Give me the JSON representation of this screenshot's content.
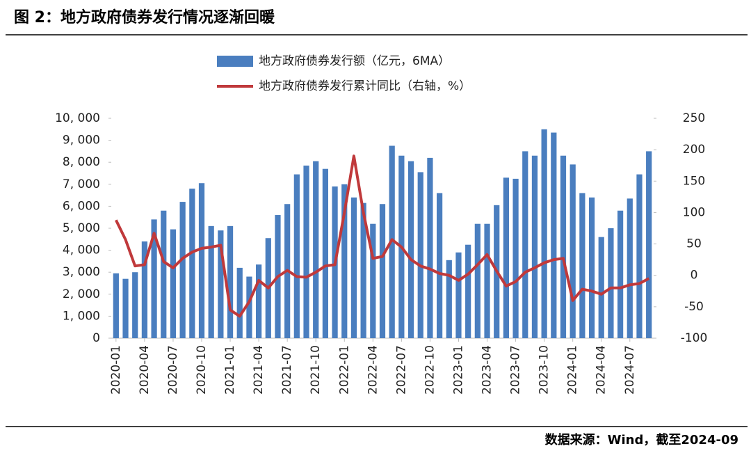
{
  "title": "图 2：地方政府债券发行情况逐渐回暖",
  "source": "数据来源：Wind，截至2024-09",
  "chart_data": {
    "type": "bar_line",
    "categories": [
      "2020-01",
      null,
      null,
      "2020-04",
      null,
      null,
      "2020-07",
      null,
      null,
      "2020-10",
      null,
      null,
      "2021-01",
      null,
      null,
      "2021-04",
      null,
      null,
      "2021-07",
      null,
      null,
      "2021-10",
      null,
      null,
      "2022-01",
      null,
      null,
      "2022-04",
      null,
      null,
      "2022-07",
      null,
      null,
      "2022-10",
      null,
      null,
      "2023-01",
      null,
      null,
      "2023-04",
      null,
      null,
      "2023-07",
      null,
      null,
      "2023-10",
      null,
      null,
      "2024-01",
      null,
      null,
      "2024-04",
      null,
      null,
      "2024-07",
      null,
      null
    ],
    "series": [
      {
        "name": "地方政府债券发行额（亿元，6MA）",
        "color": "#4a7ebf",
        "type": "bar",
        "values": [
          2950,
          2700,
          3000,
          4400,
          5400,
          5800,
          4950,
          6200,
          6800,
          7050,
          5100,
          4900,
          5100,
          3200,
          2800,
          3350,
          4550,
          5600,
          6100,
          7450,
          7850,
          8050,
          7700,
          6900,
          7000,
          6400,
          6150,
          5200,
          6100,
          8750,
          8300,
          8050,
          7550,
          8200,
          6600,
          3550,
          3900,
          4250,
          5200,
          5200,
          6050,
          7300,
          7250,
          8500,
          8300,
          9500,
          9350,
          8300,
          7900,
          6600,
          6400,
          4600,
          5000,
          5800,
          6350,
          7450,
          8500
        ]
      },
      {
        "name": "地方政府债券发行累计同比（右轴，%）",
        "color": "#c0393b",
        "type": "line",
        "axis": "y2",
        "values": [
          88,
          57,
          15,
          17,
          67,
          22,
          12,
          27,
          37,
          43,
          45,
          48,
          -55,
          -65,
          -42,
          -8,
          -20,
          -2,
          8,
          -2,
          -3,
          5,
          15,
          17,
          100,
          190,
          100,
          27,
          30,
          57,
          45,
          25,
          15,
          10,
          3,
          0,
          -8,
          2,
          17,
          33,
          7,
          -17,
          -10,
          5,
          12,
          20,
          25,
          27,
          -40,
          -22,
          -25,
          -30,
          -20,
          -20,
          -15,
          -13,
          -5
        ]
      }
    ],
    "ylim": [
      0,
      10000
    ],
    "yticks": [
      0,
      {
        "value": 1000,
        "label": "1, 000"
      },
      {
        "value": 2000,
        "label": "2, 000"
      },
      {
        "value": 3000,
        "label": "3, 000"
      },
      {
        "value": 4000,
        "label": "4, 000"
      },
      {
        "value": 5000,
        "label": "5, 000"
      },
      {
        "value": 6000,
        "label": "6, 000"
      },
      {
        "value": 7000,
        "label": "7, 000"
      },
      {
        "value": 8000,
        "label": "8, 000"
      },
      {
        "value": 9000,
        "label": "9, 000"
      },
      {
        "value": 10000,
        "label": "10, 000"
      }
    ],
    "y2lim": [
      -100,
      250
    ],
    "y2ticks": [
      -100,
      -50,
      0,
      50,
      100,
      150,
      200,
      250
    ],
    "legend": "top"
  }
}
